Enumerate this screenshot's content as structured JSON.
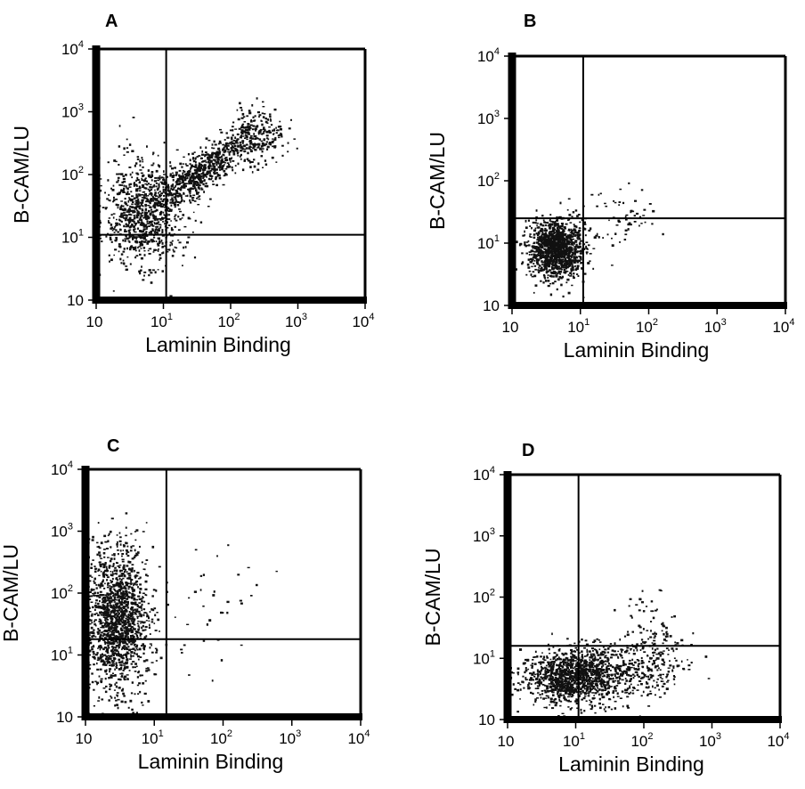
{
  "chart_data": [
    {
      "type": "scatter",
      "panel_label": "A",
      "xlabel": "Laminin Binding",
      "ylabel": "B-CAM/LU",
      "x_scale": "log",
      "y_scale": "log",
      "xlim": [
        1,
        10000
      ],
      "ylim": [
        1,
        10000
      ],
      "x_ticks": [
        {
          "base": "10",
          "exp": ""
        },
        {
          "base": "10",
          "exp": "1"
        },
        {
          "base": "10",
          "exp": "2"
        },
        {
          "base": "10",
          "exp": "3"
        },
        {
          "base": "10",
          "exp": "4"
        }
      ],
      "y_ticks": [
        {
          "base": "10",
          "exp": ""
        },
        {
          "base": "10",
          "exp": "1"
        },
        {
          "base": "10",
          "exp": "2"
        },
        {
          "base": "10",
          "exp": "3"
        },
        {
          "base": "10",
          "exp": "4"
        }
      ],
      "quadrant_gate": {
        "x": 11,
        "y": 11
      },
      "clusters": [
        {
          "x_center": 5,
          "y_center": 25,
          "x_spread": 0.32,
          "y_spread": 0.42,
          "n": 900
        },
        {
          "x_center": 40,
          "y_center": 120,
          "x_spread": 0.38,
          "y_spread": 0.32,
          "n": 650,
          "correlated": true
        },
        {
          "x_center": 250,
          "y_center": 400,
          "x_spread": 0.22,
          "y_spread": 0.2,
          "n": 220
        }
      ]
    },
    {
      "type": "scatter",
      "panel_label": "B",
      "xlabel": "Laminin Binding",
      "ylabel": "B-CAM/LU",
      "x_scale": "log",
      "y_scale": "log",
      "xlim": [
        1,
        10000
      ],
      "ylim": [
        1,
        10000
      ],
      "x_ticks": [
        {
          "base": "10",
          "exp": ""
        },
        {
          "base": "10",
          "exp": "1"
        },
        {
          "base": "10",
          "exp": "2"
        },
        {
          "base": "10",
          "exp": "3"
        },
        {
          "base": "10",
          "exp": "4"
        }
      ],
      "y_ticks": [
        {
          "base": "10",
          "exp": ""
        },
        {
          "base": "10",
          "exp": "1"
        },
        {
          "base": "10",
          "exp": "2"
        },
        {
          "base": "10",
          "exp": "3"
        },
        {
          "base": "10",
          "exp": "4"
        }
      ],
      "quadrant_gate": {
        "x": 11,
        "y": 25
      },
      "clusters": [
        {
          "x_center": 4.5,
          "y_center": 8,
          "x_spread": 0.2,
          "y_spread": 0.22,
          "n": 1300
        },
        {
          "x_center": 40,
          "y_center": 25,
          "x_spread": 0.3,
          "y_spread": 0.25,
          "n": 60
        }
      ]
    },
    {
      "type": "scatter",
      "panel_label": "C",
      "xlabel": "Laminin Binding",
      "ylabel": "B-CAM/LU",
      "x_scale": "log",
      "y_scale": "log",
      "xlim": [
        1,
        10000
      ],
      "ylim": [
        1,
        10000
      ],
      "x_ticks": [
        {
          "base": "10",
          "exp": ""
        },
        {
          "base": "10",
          "exp": "1"
        },
        {
          "base": "10",
          "exp": "2"
        },
        {
          "base": "10",
          "exp": "3"
        },
        {
          "base": "10",
          "exp": "4"
        }
      ],
      "y_ticks": [
        {
          "base": "10",
          "exp": ""
        },
        {
          "base": "10",
          "exp": "1"
        },
        {
          "base": "10",
          "exp": "2"
        },
        {
          "base": "10",
          "exp": "3"
        },
        {
          "base": "10",
          "exp": "4"
        }
      ],
      "quadrant_gate": {
        "x": 15,
        "y": 18
      },
      "clusters": [
        {
          "x_center": 3,
          "y_center": 40,
          "x_spread": 0.22,
          "y_spread": 0.6,
          "n": 1500
        },
        {
          "x_center": 60,
          "y_center": 50,
          "x_spread": 0.45,
          "y_spread": 0.45,
          "n": 40
        }
      ]
    },
    {
      "type": "scatter",
      "panel_label": "D",
      "xlabel": "Laminin Binding",
      "ylabel": "B-CAM/LU",
      "x_scale": "log",
      "y_scale": "log",
      "xlim": [
        1,
        10000
      ],
      "ylim": [
        1,
        10000
      ],
      "x_ticks": [
        {
          "base": "10",
          "exp": ""
        },
        {
          "base": "10",
          "exp": "1"
        },
        {
          "base": "10",
          "exp": "2"
        },
        {
          "base": "10",
          "exp": "3"
        },
        {
          "base": "10",
          "exp": "4"
        }
      ],
      "y_ticks": [
        {
          "base": "10",
          "exp": ""
        },
        {
          "base": "10",
          "exp": "1"
        },
        {
          "base": "10",
          "exp": "2"
        },
        {
          "base": "10",
          "exp": "3"
        },
        {
          "base": "10",
          "exp": "4"
        }
      ],
      "quadrant_gate": {
        "x": 11,
        "y": 16
      },
      "clusters": [
        {
          "x_center": 10,
          "y_center": 5,
          "x_spread": 0.38,
          "y_spread": 0.22,
          "n": 1300
        },
        {
          "x_center": 120,
          "y_center": 8,
          "x_spread": 0.3,
          "y_spread": 0.25,
          "n": 250
        },
        {
          "x_center": 150,
          "y_center": 40,
          "x_spread": 0.2,
          "y_spread": 0.3,
          "n": 40
        }
      ]
    }
  ]
}
